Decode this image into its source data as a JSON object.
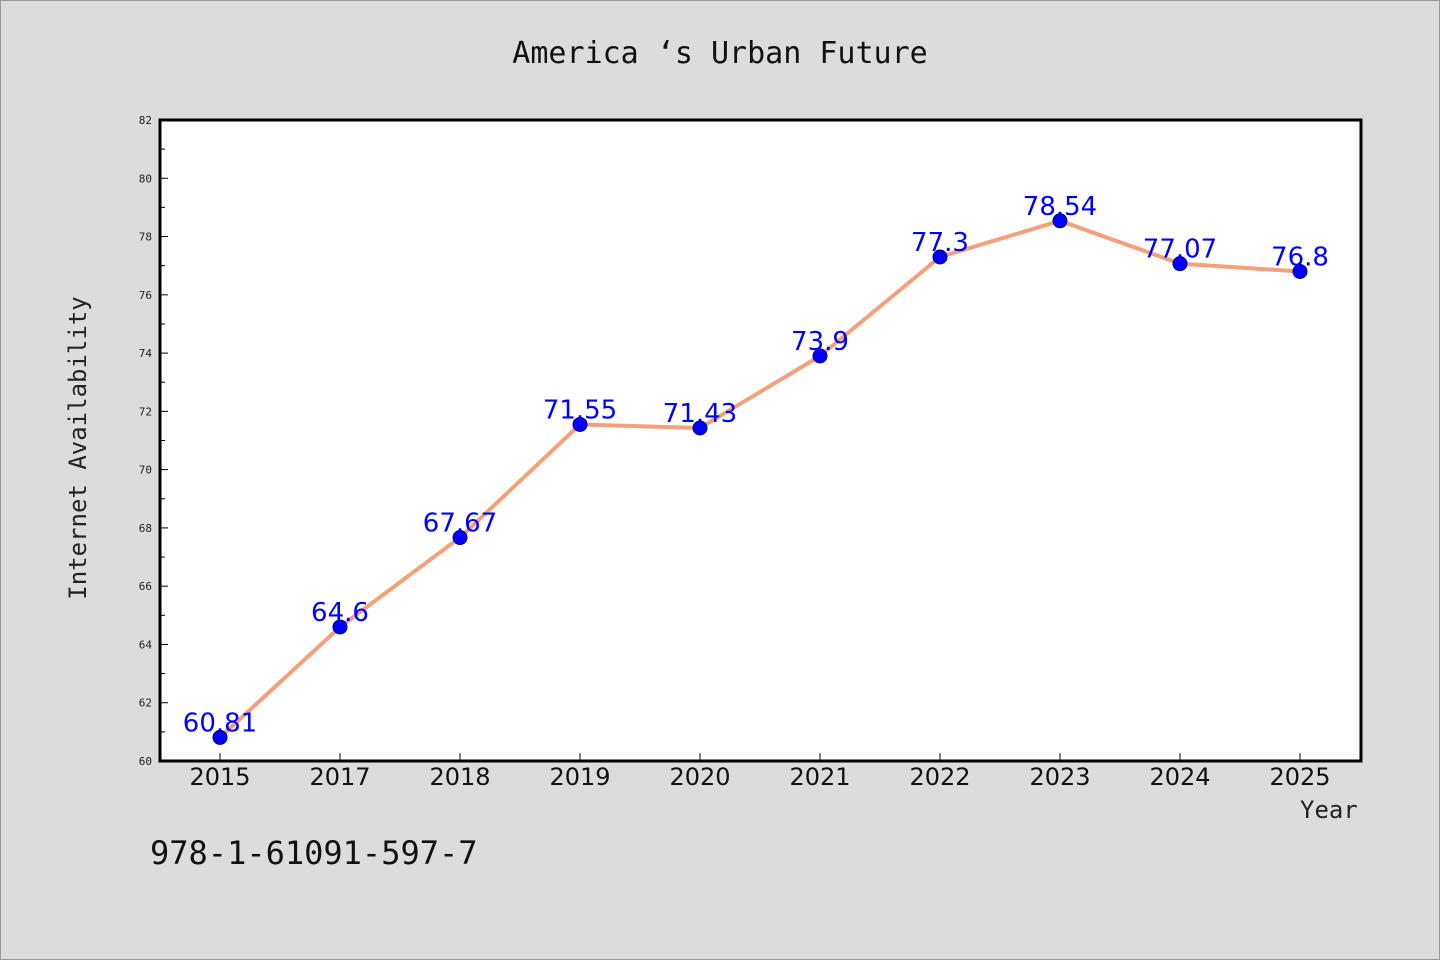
{
  "chart_data": {
    "type": "line",
    "title": "America ‘s Urban Future",
    "xlabel": "Year",
    "ylabel": "Internet Availability",
    "categories": [
      "2015",
      "2017",
      "2018",
      "2019",
      "2020",
      "2021",
      "2022",
      "2023",
      "2024",
      "2025"
    ],
    "values": [
      60.81,
      64.6,
      67.67,
      71.55,
      71.43,
      73.9,
      77.3,
      78.54,
      77.07,
      76.8
    ],
    "data_labels": [
      "60.81",
      "64.6",
      "67.67",
      "71.55",
      "71.43",
      "73.9",
      "77.3",
      "78.54",
      "77.07",
      "76.8"
    ],
    "ylim": [
      60,
      82
    ],
    "yticks": [
      "60",
      "62",
      "64",
      "66",
      "68",
      "70",
      "72",
      "74",
      "76",
      "78",
      "80",
      "82"
    ],
    "grid": false,
    "line_color": "#f4a07a",
    "marker_color": "#0000ff",
    "label_color": "#0000ff"
  },
  "footer": {
    "isbn": "978-1-61091-597-7"
  }
}
